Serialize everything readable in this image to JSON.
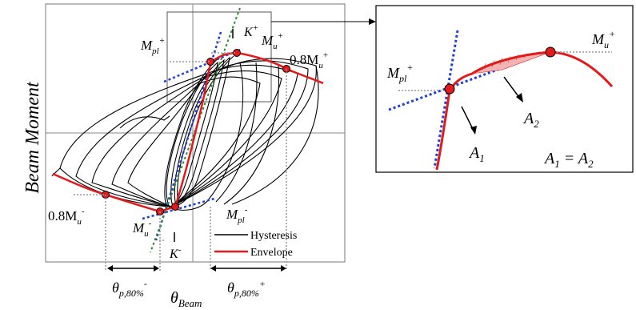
{
  "y_axis_label": "Beam Moment",
  "x_axis_label_main": "θ",
  "x_axis_label_sub": "Beam",
  "theta_neg": {
    "main": "θ",
    "sub": "p,80%",
    "sup": "-"
  },
  "theta_pos": {
    "main": "θ",
    "sub": "p,80%",
    "sup": "+"
  },
  "k_plus": {
    "main": "K",
    "sup": "+"
  },
  "k_minus": {
    "main": "K",
    "sup": "-"
  },
  "mpl_plus": {
    "main": "M",
    "sub": "pl",
    "sup": "+"
  },
  "mu_plus": {
    "main": "M",
    "sub": "u",
    "sup": "+"
  },
  "p08mu_plus": {
    "main": "0.8M",
    "sub": "u",
    "sup": "+"
  },
  "p08mu_minus": {
    "main": "0.8M",
    "sub": "u",
    "sup": "-"
  },
  "mu_minus": {
    "main": "M",
    "sub": "u",
    "sup": "-"
  },
  "mpl_minus": {
    "main": "M",
    "sub": "pl",
    "sup": "-"
  },
  "legend": {
    "hysteresis": "Hysteresis",
    "envelope": "Envelope"
  },
  "inset": {
    "mpl_plus": {
      "main": "M",
      "sub": "pl",
      "sup": "+"
    },
    "mu_plus": {
      "main": "M",
      "sub": "u",
      "sup": "+"
    },
    "a1": {
      "main": "A",
      "sub": "1"
    },
    "a2": {
      "main": "A",
      "sub": "2"
    },
    "equation": {
      "lhs": "A",
      "lsub": "1",
      "eq": " = ",
      "rhs": "A",
      "rsub": "2"
    }
  },
  "colors": {
    "envelope": "#e31a1c",
    "hysteresis": "#000000",
    "stiffness_blue": "#1f3fd6",
    "stiffness_green": "#2e8b2e",
    "marker": "#e31a1c",
    "guide": "#999999"
  }
}
